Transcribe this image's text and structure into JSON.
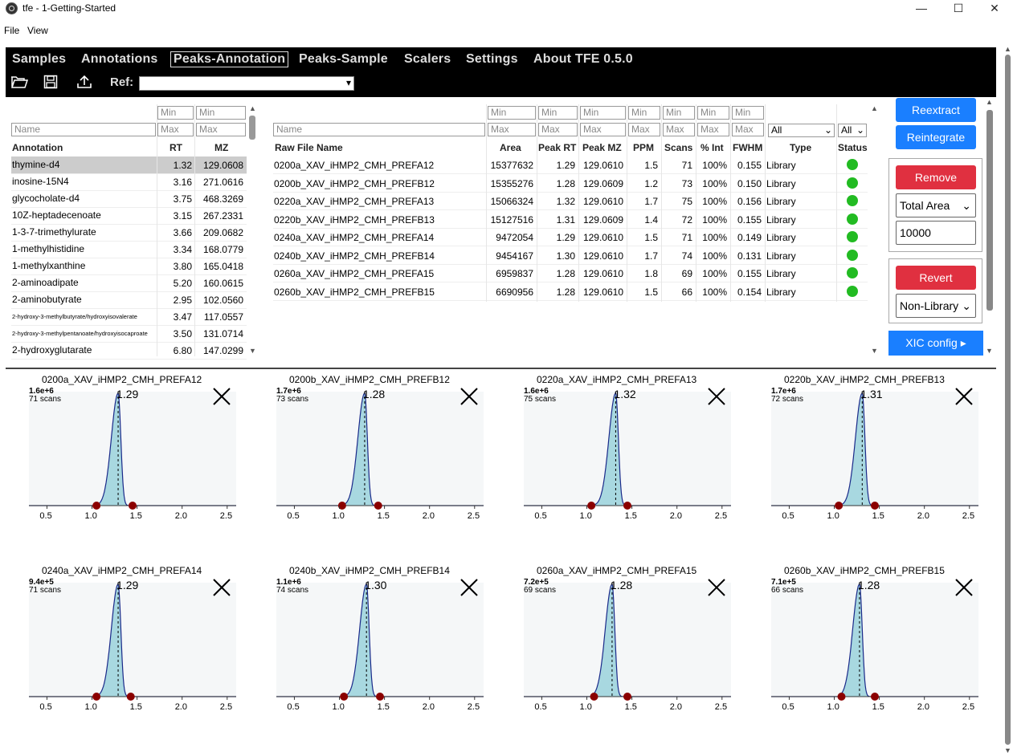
{
  "window": {
    "title": "tfe - 1-Getting-Started",
    "minimize": "—",
    "maximize": "☐",
    "close": "✕"
  },
  "menu": {
    "file": "File",
    "view": "View"
  },
  "nav": {
    "tabs": [
      "Samples",
      "Annotations",
      "Peaks-Annotation",
      "Peaks-Sample",
      "Scalers",
      "Settings",
      "About TFE 0.5.0"
    ],
    "active": "Peaks-Annotation"
  },
  "toolbar": {
    "ref_label": "Ref:",
    "ref_value": ""
  },
  "annotations": {
    "filters": {
      "name_placeholder": "Name",
      "min": "Min",
      "max": "Max"
    },
    "headers": {
      "annotation": "Annotation",
      "rt": "RT",
      "mz": "MZ"
    },
    "rows": [
      {
        "name": "thymine-d4",
        "rt": "1.32",
        "mz": "129.0608"
      },
      {
        "name": "inosine-15N4",
        "rt": "3.16",
        "mz": "271.0616"
      },
      {
        "name": "glycocholate-d4",
        "rt": "3.75",
        "mz": "468.3269"
      },
      {
        "name": "10Z-heptadecenoate",
        "rt": "3.15",
        "mz": "267.2331"
      },
      {
        "name": "1-3-7-trimethylurate",
        "rt": "3.66",
        "mz": "209.0682"
      },
      {
        "name": "1-methylhistidine",
        "rt": "3.34",
        "mz": "168.0779"
      },
      {
        "name": "1-methylxanthine",
        "rt": "3.80",
        "mz": "165.0418"
      },
      {
        "name": "2-aminoadipate",
        "rt": "5.20",
        "mz": "160.0615"
      },
      {
        "name": "2-aminobutyrate",
        "rt": "2.95",
        "mz": "102.0560"
      },
      {
        "name": "2-hydroxy-3-methylbutyrate/hydroxyisovalerate",
        "rt": "3.47",
        "mz": "117.0557"
      },
      {
        "name": "2-hydroxy-3-methylpentanoate/hydroxyisocaproate",
        "rt": "3.50",
        "mz": "131.0714"
      },
      {
        "name": "2-hydroxyglutarate",
        "rt": "6.80",
        "mz": "147.0299"
      }
    ]
  },
  "peaks": {
    "filters": {
      "name_placeholder": "Name",
      "min": "Min",
      "max": "Max",
      "type_value": "All",
      "status_value": "All"
    },
    "headers": {
      "file": "Raw File Name",
      "area": "Area",
      "peak_rt": "Peak RT",
      "peak_mz": "Peak MZ",
      "ppm": "PPM",
      "scans": "Scans",
      "pct_int": "% Int",
      "fwhm": "FWHM",
      "type": "Type",
      "status": "Status"
    },
    "rows": [
      {
        "file": "0200a_XAV_iHMP2_CMH_PREFA12",
        "area": "15377632",
        "rt": "1.29",
        "mz": "129.0610",
        "ppm": "1.5",
        "scans": "71",
        "pct": "100%",
        "fwhm": "0.155",
        "type": "Library"
      },
      {
        "file": "0200b_XAV_iHMP2_CMH_PREFB12",
        "area": "15355276",
        "rt": "1.28",
        "mz": "129.0609",
        "ppm": "1.2",
        "scans": "73",
        "pct": "100%",
        "fwhm": "0.150",
        "type": "Library"
      },
      {
        "file": "0220a_XAV_iHMP2_CMH_PREFA13",
        "area": "15066324",
        "rt": "1.32",
        "mz": "129.0610",
        "ppm": "1.7",
        "scans": "75",
        "pct": "100%",
        "fwhm": "0.156",
        "type": "Library"
      },
      {
        "file": "0220b_XAV_iHMP2_CMH_PREFB13",
        "area": "15127516",
        "rt": "1.31",
        "mz": "129.0609",
        "ppm": "1.4",
        "scans": "72",
        "pct": "100%",
        "fwhm": "0.155",
        "type": "Library"
      },
      {
        "file": "0240a_XAV_iHMP2_CMH_PREFA14",
        "area": "9472054",
        "rt": "1.29",
        "mz": "129.0610",
        "ppm": "1.5",
        "scans": "71",
        "pct": "100%",
        "fwhm": "0.149",
        "type": "Library"
      },
      {
        "file": "0240b_XAV_iHMP2_CMH_PREFB14",
        "area": "9454167",
        "rt": "1.30",
        "mz": "129.0610",
        "ppm": "1.7",
        "scans": "74",
        "pct": "100%",
        "fwhm": "0.131",
        "type": "Library"
      },
      {
        "file": "0260a_XAV_iHMP2_CMH_PREFA15",
        "area": "6959837",
        "rt": "1.28",
        "mz": "129.0610",
        "ppm": "1.8",
        "scans": "69",
        "pct": "100%",
        "fwhm": "0.155",
        "type": "Library"
      },
      {
        "file": "0260b_XAV_iHMP2_CMH_PREFB15",
        "area": "6690956",
        "rt": "1.28",
        "mz": "129.0610",
        "ppm": "1.5",
        "scans": "66",
        "pct": "100%",
        "fwhm": "0.154",
        "type": "Library"
      }
    ],
    "status_color": "#22bb22"
  },
  "actions": {
    "reextract": "Reextract",
    "reintegrate": "Reintegrate",
    "remove": "Remove",
    "remove_metric": "Total Area",
    "remove_threshold": "10000",
    "revert": "Revert",
    "revert_type": "Non-Library",
    "xic_config": "XIC config ▸"
  },
  "chart_data": [
    {
      "type": "area",
      "title": "0200a_XAV_iHMP2_CMH_PREFA12",
      "intensity": "1.6e+6",
      "scans": "71 scans",
      "peak_rt": "1.29",
      "rt": 1.29,
      "bounds": [
        1.05,
        1.45
      ],
      "xticks": [
        "0.5",
        "1.0",
        "1.5",
        "2.0",
        "2.5"
      ],
      "xlim": [
        0.3,
        2.6
      ]
    },
    {
      "type": "area",
      "title": "0200b_XAV_iHMP2_CMH_PREFB12",
      "intensity": "1.7e+6",
      "scans": "73 scans",
      "peak_rt": "1.28",
      "rt": 1.28,
      "bounds": [
        1.03,
        1.43
      ],
      "xticks": [
        "0.5",
        "1.0",
        "1.5",
        "2.0",
        "2.5"
      ],
      "xlim": [
        0.3,
        2.6
      ]
    },
    {
      "type": "area",
      "title": "0220a_XAV_iHMP2_CMH_PREFA13",
      "intensity": "1.6e+6",
      "scans": "75 scans",
      "peak_rt": "1.32",
      "rt": 1.32,
      "bounds": [
        1.05,
        1.45
      ],
      "xticks": [
        "0.5",
        "1.0",
        "1.5",
        "2.0",
        "2.5"
      ],
      "xlim": [
        0.3,
        2.6
      ]
    },
    {
      "type": "area",
      "title": "0220b_XAV_iHMP2_CMH_PREFB13",
      "intensity": "1.7e+6",
      "scans": "72 scans",
      "peak_rt": "1.31",
      "rt": 1.31,
      "bounds": [
        1.05,
        1.45
      ],
      "xticks": [
        "0.5",
        "1.0",
        "1.5",
        "2.0",
        "2.5"
      ],
      "xlim": [
        0.3,
        2.6
      ]
    },
    {
      "type": "area",
      "title": "0240a_XAV_iHMP2_CMH_PREFA14",
      "intensity": "9.4e+5",
      "scans": "71 scans",
      "peak_rt": "1.29",
      "rt": 1.29,
      "bounds": [
        1.05,
        1.43
      ],
      "xticks": [
        "0.5",
        "1.0",
        "1.5",
        "2.0",
        "2.5"
      ],
      "xlim": [
        0.3,
        2.6
      ]
    },
    {
      "type": "area",
      "title": "0240b_XAV_iHMP2_CMH_PREFB14",
      "intensity": "1.1e+6",
      "scans": "74 scans",
      "peak_rt": "1.30",
      "rt": 1.3,
      "bounds": [
        1.05,
        1.45
      ],
      "xticks": [
        "0.5",
        "1.0",
        "1.5",
        "2.0",
        "2.5"
      ],
      "xlim": [
        0.3,
        2.6
      ]
    },
    {
      "type": "area",
      "title": "0260a_XAV_iHMP2_CMH_PREFA15",
      "intensity": "7.2e+5",
      "scans": "69 scans",
      "peak_rt": "1.28",
      "rt": 1.28,
      "bounds": [
        1.08,
        1.45
      ],
      "xticks": [
        "0.5",
        "1.0",
        "1.5",
        "2.0",
        "2.5"
      ],
      "xlim": [
        0.3,
        2.6
      ]
    },
    {
      "type": "area",
      "title": "0260b_XAV_iHMP2_CMH_PREFB15",
      "intensity": "7.1e+5",
      "scans": "66 scans",
      "peak_rt": "1.28",
      "rt": 1.28,
      "bounds": [
        1.08,
        1.45
      ],
      "xticks": [
        "0.5",
        "1.0",
        "1.5",
        "2.0",
        "2.5"
      ],
      "xlim": [
        0.3,
        2.6
      ]
    }
  ],
  "colors": {
    "accent_blue": "#1a7fff",
    "danger_red": "#e03040",
    "peak_fill": "#a8d8e0",
    "peak_line": "#1a2a8a",
    "bound_marker": "#8b0000"
  }
}
